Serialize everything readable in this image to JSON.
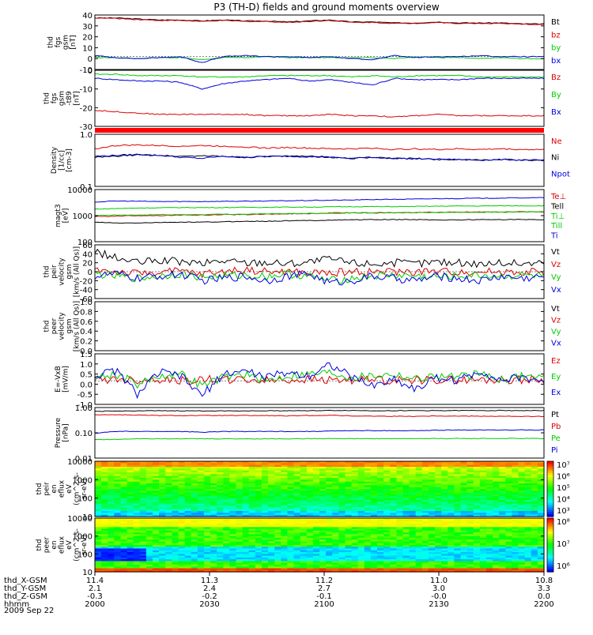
{
  "title": "P3 (TH-D) fields and ground moments overview",
  "date": "2009 Sep 22",
  "chart_data": [
    {
      "type": "line",
      "id": "p1",
      "ylabel": [
        "thd",
        "fgs",
        "gsm",
        "[nT]"
      ],
      "yticks": [
        "40",
        "30",
        "20",
        "10",
        "0",
        "-10"
      ],
      "ylim": [
        -13,
        42
      ],
      "series": [
        {
          "name": "Bt",
          "color": "#000000",
          "values": [
            39,
            39,
            38,
            37,
            37,
            36,
            37,
            36,
            36,
            35,
            36,
            37,
            35,
            35,
            34,
            34,
            35,
            34,
            34,
            34,
            33,
            33
          ]
        },
        {
          "name": "bz",
          "color": "#dd0000",
          "values": [
            39,
            38.5,
            37.5,
            36.5,
            36.5,
            35.5,
            36.5,
            35.5,
            35.5,
            34.5,
            35.5,
            36.5,
            34.5,
            34.5,
            33.5,
            33.5,
            34.5,
            33.5,
            33.5,
            33.5,
            32.5,
            32.5
          ]
        },
        {
          "name": "by",
          "color": "#00cc00",
          "values": [
            -1,
            -1,
            -2,
            -1,
            -1,
            -3,
            -1,
            -1,
            0,
            -1,
            -1,
            -1,
            -1,
            -1,
            -2,
            0,
            -1,
            -1,
            -2,
            -1,
            -2,
            -2
          ]
        },
        {
          "name": "bx",
          "color": "#0000dd",
          "values": [
            1,
            -1,
            -2,
            -1,
            0,
            -6,
            0,
            1,
            0,
            0,
            -1,
            0,
            -2,
            -3,
            1,
            -1,
            0,
            0,
            1,
            0,
            0,
            0
          ]
        }
      ]
    },
    {
      "type": "line",
      "id": "p2",
      "ylabel": [
        "thd",
        "fgs",
        "gsm",
        "-t89",
        "[nT]"
      ],
      "yticks": [
        "0",
        "-10",
        "-20",
        "-30"
      ],
      "ylim": [
        -36,
        6
      ],
      "series": [
        {
          "name": "Bz",
          "color": "#dd0000",
          "values": [
            -24,
            -25,
            -26,
            -27,
            -27,
            -27,
            -27,
            -27,
            -28,
            -28,
            -28,
            -27,
            -28,
            -28,
            -29,
            -28,
            -27,
            -28,
            -28,
            -28,
            -28,
            -28
          ]
        },
        {
          "name": "By",
          "color": "#00cc00",
          "values": [
            3,
            3,
            2,
            2,
            2,
            1,
            1,
            1,
            2,
            2,
            2,
            2,
            1,
            2,
            1,
            2,
            2,
            2,
            1,
            1,
            1,
            1
          ]
        },
        {
          "name": "Bx",
          "color": "#0000dd",
          "values": [
            0,
            -1,
            -2,
            -2,
            -3,
            -8,
            -4,
            -2,
            -1,
            0,
            -2,
            -1,
            -3,
            -5,
            0,
            -1,
            -1,
            -1,
            0,
            0,
            0,
            0
          ]
        }
      ]
    },
    {
      "type": "line",
      "id": "p3",
      "yscale": "log",
      "ylabel": [
        "Density",
        "[1/cc]",
        "[cm-3]"
      ],
      "yticks": [
        "1.0",
        "0.1"
      ],
      "ylim": [
        0.1,
        1.2
      ],
      "series": [
        {
          "name": "Ne",
          "color": "#dd0000",
          "values": [
            0.6,
            0.7,
            0.72,
            0.7,
            0.68,
            0.7,
            0.68,
            0.66,
            0.62,
            0.64,
            0.62,
            0.6,
            0.6,
            0.62,
            0.58,
            0.6,
            0.58,
            0.6,
            0.58,
            0.6,
            0.58,
            0.58
          ]
        },
        {
          "name": "Ni",
          "color": "#000000",
          "values": [
            0.4,
            0.42,
            0.45,
            0.44,
            0.42,
            0.43,
            0.42,
            0.4,
            0.41,
            0.42,
            0.43,
            0.4,
            0.38,
            0.4,
            0.38,
            0.38,
            0.36,
            0.36,
            0.35,
            0.36,
            0.35,
            0.34
          ]
        },
        {
          "name": "Npot",
          "color": "#0000dd",
          "values": [
            0.42,
            0.44,
            0.46,
            0.44,
            0.4,
            0.38,
            0.42,
            0.4,
            0.42,
            0.42,
            0.41,
            0.4,
            0.38,
            0.4,
            0.38,
            0.37,
            0.37,
            0.36,
            0.35,
            0.36,
            0.35,
            0.35
          ]
        }
      ]
    },
    {
      "type": "line",
      "id": "p4",
      "yscale": "log",
      "ylabel": [
        "magt3",
        "[eV]"
      ],
      "yticks": [
        "10000",
        "1000",
        "100"
      ],
      "ylim": [
        100,
        12000
      ],
      "series": [
        {
          "name": "Te⊥",
          "color": "#dd0000",
          "values": [
            1000,
            1050,
            1100,
            1100,
            1150,
            1150,
            1200,
            1200,
            1250,
            1300,
            1300,
            1400,
            1450,
            1400,
            1400,
            1450,
            1500,
            1500,
            1550,
            1550,
            1550,
            1550
          ]
        },
        {
          "name": "Tell",
          "color": "#000000",
          "values": [
            600,
            550,
            560,
            580,
            600,
            600,
            620,
            650,
            650,
            680,
            700,
            720,
            750,
            760,
            760,
            760,
            740,
            740,
            760,
            760,
            760,
            760
          ]
        },
        {
          "name": "Ti⊥",
          "color": "#00cc00",
          "values": [
            2000,
            2100,
            2200,
            2250,
            2300,
            2300,
            2300,
            2350,
            2350,
            2400,
            2400,
            2450,
            2500,
            2500,
            2500,
            2550,
            2600,
            2650,
            2650,
            2700,
            2700,
            2700
          ]
        },
        {
          "name": "Till",
          "color": "#00cc00",
          "values": [
            1100,
            1150,
            1150,
            1200,
            1200,
            1200,
            1250,
            1250,
            1300,
            1300,
            1350,
            1350,
            1400,
            1450,
            1450,
            1450,
            1450,
            1500,
            1500,
            1500,
            1550,
            1550
          ]
        },
        {
          "name": "Ti",
          "color": "#0000dd",
          "values": [
            3800,
            4200,
            4100,
            4000,
            4000,
            4000,
            4100,
            4100,
            4200,
            4300,
            4400,
            4500,
            4600,
            4800,
            4900,
            5000,
            5200,
            5300,
            5400,
            5500,
            5600,
            5700
          ]
        }
      ]
    },
    {
      "type": "line",
      "id": "p5",
      "ylabel": [
        "thd",
        "peir",
        "velocity",
        "gsm",
        "[km/s (All Qs)]"
      ],
      "yticks": [
        "60",
        "40",
        "20",
        "0",
        "-20",
        "-40",
        "-60"
      ],
      "ylim": [
        -60,
        60
      ],
      "series": [
        {
          "name": "Vt",
          "color": "#000000",
          "values": [
            45,
            30,
            20,
            25,
            22,
            18,
            25,
            20,
            22,
            18,
            22,
            28,
            20,
            18,
            20,
            18,
            22,
            20,
            18,
            20,
            18,
            20
          ]
        },
        {
          "name": "Vz",
          "color": "#dd0000",
          "values": [
            5,
            0,
            -5,
            0,
            0,
            -5,
            0,
            5,
            0,
            0,
            -3,
            -2,
            0,
            0,
            0,
            0,
            0,
            0,
            0,
            0,
            0,
            0
          ]
        },
        {
          "name": "Vy",
          "color": "#00cc00",
          "values": [
            -5,
            -10,
            -15,
            -10,
            -5,
            -12,
            -10,
            -8,
            -10,
            -5,
            -10,
            -20,
            -15,
            -10,
            -8,
            -10,
            -12,
            -10,
            -8,
            -10,
            -8,
            -10
          ]
        },
        {
          "name": "Vx",
          "color": "#0000dd",
          "values": [
            -10,
            -5,
            -15,
            -10,
            -5,
            -20,
            -15,
            -10,
            -20,
            -10,
            -5,
            -25,
            -20,
            -10,
            -15,
            -20,
            -10,
            -15,
            -20,
            -10,
            -15,
            -10
          ]
        }
      ]
    },
    {
      "type": "line",
      "id": "p6",
      "ylabel": [
        "thd",
        "peer",
        "velocity",
        "gsm",
        "[km/s (All Qs)]"
      ],
      "yticks": [
        "1.0",
        "0.8",
        "0.6",
        "0.4",
        "0.2",
        "0.0"
      ],
      "ylim": [
        0,
        1
      ],
      "series": [
        {
          "name": "Vt",
          "color": "#000000",
          "values": []
        },
        {
          "name": "Vz",
          "color": "#dd0000",
          "values": []
        },
        {
          "name": "Vy",
          "color": "#00cc00",
          "values": []
        },
        {
          "name": "Vx",
          "color": "#0000dd",
          "values": []
        }
      ]
    },
    {
      "type": "line",
      "id": "p7",
      "ylabel": [
        "E=-VxB",
        "[mV/m]"
      ],
      "yticks": [
        "1.5",
        "1.0",
        "0.5",
        "0.0",
        "-0.5",
        "-1.0"
      ],
      "ylim": [
        -1.4,
        1.6
      ],
      "series": [
        {
          "name": "Ez",
          "color": "#dd0000",
          "values": [
            0.05,
            0.1,
            0.05,
            0.1,
            0,
            0.05,
            0.1,
            0.05,
            0,
            0.05,
            0.1,
            0.05,
            0.05,
            0.05,
            0.05,
            0.05,
            0.05,
            0.05,
            0.05,
            0.05,
            0.05,
            0.05
          ]
        },
        {
          "name": "Ey",
          "color": "#00cc00",
          "values": [
            0.2,
            0.4,
            -0.2,
            0.3,
            0.4,
            -0.3,
            0.2,
            0.4,
            0,
            0.3,
            0.4,
            0.5,
            0.2,
            0.3,
            0.4,
            0.1,
            0.3,
            0.2,
            0.4,
            0.1,
            0.3,
            0.2
          ]
        },
        {
          "name": "Ex",
          "color": "#0000dd",
          "values": [
            0.3,
            0.6,
            -0.8,
            0.5,
            0.3,
            -0.9,
            0.4,
            0.6,
            0.2,
            0.5,
            0.3,
            1.0,
            0.2,
            -0.3,
            0.1,
            -0.5,
            0.2,
            0,
            0.6,
            0,
            0.2,
            0
          ]
        }
      ]
    },
    {
      "type": "line",
      "id": "p8",
      "yscale": "log",
      "ylabel": [
        "Pressure",
        "[nPa]"
      ],
      "yticks": [
        "1.00",
        "0.10",
        "0.01"
      ],
      "ylim": [
        0.01,
        1.3
      ],
      "series": [
        {
          "name": "Pt",
          "color": "#000000",
          "values": [
            0.9,
            0.92,
            0.95,
            0.95,
            0.95,
            0.94,
            0.95,
            0.94,
            0.95,
            0.96,
            0.96,
            0.98,
            0.98,
            0.96,
            0.96,
            0.97,
            0.97,
            0.97,
            0.98,
            0.98,
            0.97,
            0.97
          ]
        },
        {
          "name": "Pb",
          "color": "#dd0000",
          "values": [
            0.65,
            0.65,
            0.63,
            0.6,
            0.6,
            0.6,
            0.6,
            0.6,
            0.6,
            0.58,
            0.6,
            0.62,
            0.58,
            0.57,
            0.56,
            0.56,
            0.58,
            0.57,
            0.57,
            0.56,
            0.55,
            0.55
          ]
        },
        {
          "name": "Pe",
          "color": "#00cc00",
          "values": [
            0.06,
            0.06,
            0.065,
            0.065,
            0.065,
            0.064,
            0.064,
            0.064,
            0.064,
            0.064,
            0.065,
            0.066,
            0.065,
            0.065,
            0.065,
            0.065,
            0.066,
            0.066,
            0.066,
            0.066,
            0.066,
            0.066
          ]
        },
        {
          "name": "Pi",
          "color": "#0000dd",
          "values": [
            0.11,
            0.13,
            0.13,
            0.13,
            0.13,
            0.12,
            0.13,
            0.13,
            0.13,
            0.13,
            0.13,
            0.135,
            0.14,
            0.14,
            0.14,
            0.14,
            0.145,
            0.15,
            0.15,
            0.15,
            0.15,
            0.15
          ]
        }
      ]
    },
    {
      "type": "heatmap",
      "id": "p9",
      "yscale": "log",
      "ylabel": [
        "thd",
        "peir",
        "en",
        "eflux",
        "eV",
        "(cm^2-s-",
        "sr-eV)"
      ],
      "yticks": [
        "10000",
        "1000",
        "100",
        "10"
      ],
      "ylim": [
        7,
        25000
      ],
      "colorbar_ticks": [
        "10⁷",
        "10⁶",
        "10⁵",
        "10⁴",
        "10³"
      ]
    },
    {
      "type": "heatmap",
      "id": "p10",
      "yscale": "log",
      "ylabel": [
        "thd",
        "peer",
        "en",
        "eflux",
        "eV",
        "(cm^2-s-",
        "sr-eV)"
      ],
      "yticks": [
        "10000",
        "1000",
        "100",
        "10"
      ],
      "ylim": [
        7,
        25000
      ],
      "colorbar_ticks": [
        "10⁸",
        "10⁷",
        "10⁶"
      ]
    }
  ],
  "xaxis": {
    "row_labels": [
      "thd_X-GSM",
      "thd_Y-GSM",
      "thd_Z-GSM",
      "hhmm"
    ],
    "ticks": [
      [
        "11.4",
        "11.3",
        "11.2",
        "11.0",
        "10.8"
      ],
      [
        "2.1",
        "2.4",
        "2.7",
        "3.0",
        "3.3"
      ],
      [
        "-0.3",
        "-0.2",
        "-0.1",
        "-0.0",
        "0.0"
      ],
      [
        "2000",
        "2030",
        "2100",
        "2130",
        "2200"
      ]
    ]
  }
}
